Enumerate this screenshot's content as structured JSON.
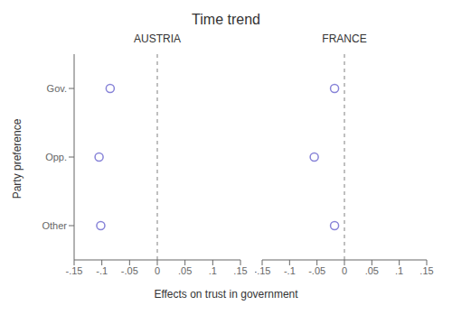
{
  "chart_data": {
    "type": "scatter",
    "title": "Time trend",
    "x_label": "Effects on trust in government",
    "y_label": "Party preference",
    "categories": [
      "Gov.",
      "Opp.",
      "Other"
    ],
    "series": [
      {
        "name": "AUSTRIA",
        "values": [
          -0.085,
          -0.105,
          -0.102
        ],
        "ci_lower": [
          -0.093,
          -0.116,
          -0.112
        ],
        "ci_upper": [
          -0.077,
          -0.094,
          -0.092
        ]
      },
      {
        "name": "FRANCE",
        "values": [
          -0.018,
          -0.055,
          -0.018
        ],
        "ci_lower": [
          -0.026,
          -0.063,
          -0.026
        ],
        "ci_upper": [
          -0.01,
          -0.047,
          -0.01
        ]
      }
    ],
    "xlim": [
      -0.15,
      0.15
    ],
    "xticks": [
      {
        "value": -0.15,
        "label": "-.15"
      },
      {
        "value": -0.1,
        "label": "-.1"
      },
      {
        "value": -0.05,
        "label": "-.05"
      },
      0,
      {
        "value": 0.05,
        "label": ".05"
      },
      {
        "value": 0.1,
        "label": ".1"
      },
      {
        "value": 0.15,
        "label": ".15"
      }
    ],
    "reference_line_x": 0,
    "marker": "circle",
    "grid": false
  }
}
